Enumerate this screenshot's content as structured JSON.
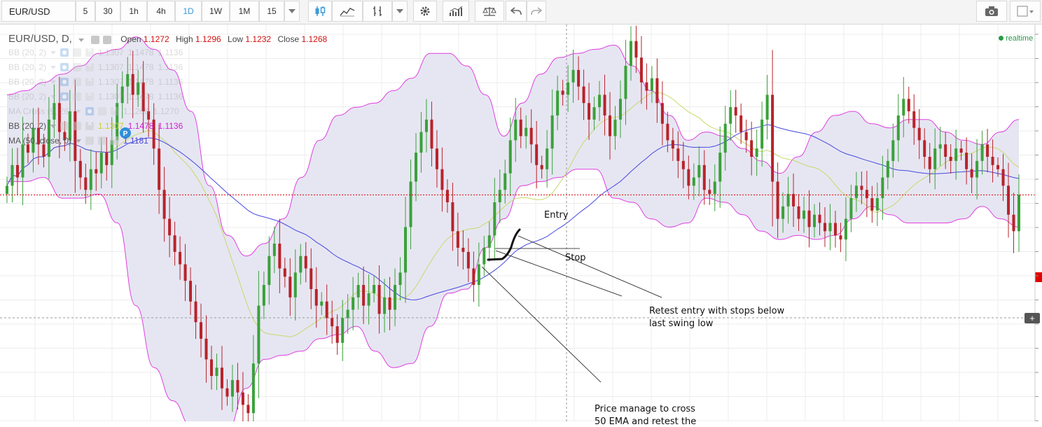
{
  "toolbar": {
    "symbol": "EUR/USD",
    "intervals": [
      "5",
      "30",
      "1h",
      "4h",
      "1D",
      "1W",
      "1M",
      "15"
    ],
    "active_interval": "1D"
  },
  "legend": {
    "title": "EUR/USD, D,",
    "open_label": "Open",
    "open": "1.1272",
    "high_label": "High",
    "high": "1.1296",
    "low_label": "Low",
    "low": "1.1232",
    "close_label": "Close",
    "close": "1.1268",
    "realtime": "realtime"
  },
  "indicators": [
    {
      "name": "BB (20, 2)",
      "values": [
        "1.1307",
        "1.1478",
        "1.1136"
      ],
      "faded": true
    },
    {
      "name": "BB (20, 2)",
      "values": [
        "1.1307",
        "1.1478",
        "1.1136"
      ],
      "faded": true
    },
    {
      "name": "BB (20, 2)",
      "values": [
        "1.1307",
        "1.1478",
        "1.1136"
      ],
      "faded": true
    },
    {
      "name": "BB (20, 2)",
      "values": [
        "1.1307",
        "1.1478",
        "1.1136"
      ],
      "faded": true
    },
    {
      "name": "MA Cross (9, 26)",
      "values": [
        "1.1268",
        "1.1270"
      ],
      "faded": true
    },
    {
      "name": "BB (20, 2)",
      "values": [
        "1.1307",
        "1.1478",
        "1.1136"
      ],
      "faded": false
    },
    {
      "name": "MA (50, close, 0)",
      "values": [
        "1.1181"
      ],
      "faded": false
    }
  ],
  "annotations": {
    "entry": "Entry",
    "stop": "Stop",
    "retest_line1": "Retest entry with stops below",
    "retest_line2": "last swing low",
    "price_line1": "Price manage to cross",
    "price_line2": "50 EMA and retest the"
  },
  "colors": {
    "up_candle": "#3aa13a",
    "down_candle": "#b8232a",
    "band": "#e040e0",
    "band_fill": "#e6e6f2",
    "ma50": "#4747e0",
    "bb_basis": "#c8d86a",
    "price_line": "#e00000",
    "accent": "#3d9bd7"
  },
  "chart_data": {
    "type": "candlestick",
    "price_range": [
      1.072,
      1.168
    ],
    "current_price": 1.1268,
    "closes": [
      1.129,
      1.134,
      1.131,
      1.139,
      1.137,
      1.143,
      1.139,
      1.136,
      1.145,
      1.149,
      1.142,
      1.14,
      1.147,
      1.135,
      1.131,
      1.128,
      1.133,
      1.132,
      1.137,
      1.134,
      1.14,
      1.149,
      1.153,
      1.156,
      1.151,
      1.154,
      1.147,
      1.145,
      1.138,
      1.128,
      1.121,
      1.117,
      1.113,
      1.11,
      1.106,
      1.101,
      1.096,
      1.092,
      1.087,
      1.083,
      1.085,
      1.08,
      1.078,
      1.082,
      1.079,
      1.076,
      1.074,
      1.086,
      1.1,
      1.105,
      1.112,
      1.115,
      1.109,
      1.107,
      1.102,
      1.108,
      1.112,
      1.109,
      1.104,
      1.1,
      1.101,
      1.097,
      1.095,
      1.091,
      1.097,
      1.099,
      1.102,
      1.105,
      1.1,
      1.103,
      1.105,
      1.098,
      1.102,
      1.099,
      1.105,
      1.108,
      1.119,
      1.13,
      1.137,
      1.142,
      1.145,
      1.138,
      1.133,
      1.128,
      1.125,
      1.118,
      1.114,
      1.113,
      1.109,
      1.105,
      1.11,
      1.114,
      1.117,
      1.125,
      1.128,
      1.132,
      1.14,
      1.145,
      1.141,
      1.143,
      1.139,
      1.134,
      1.133,
      1.138,
      1.146,
      1.152,
      1.151,
      1.154,
      1.157,
      1.153,
      1.149,
      1.145,
      1.148,
      1.151,
      1.146,
      1.141,
      1.145,
      1.15,
      1.158,
      1.164,
      1.16,
      1.154,
      1.152,
      1.155,
      1.149,
      1.144,
      1.14,
      1.138,
      1.135,
      1.133,
      1.129,
      1.131,
      1.134,
      1.128,
      1.127,
      1.13,
      1.137,
      1.144,
      1.148,
      1.146,
      1.142,
      1.14,
      1.136,
      1.138,
      1.145,
      1.151,
      1.13,
      1.121,
      1.124,
      1.127,
      1.124,
      1.121,
      1.123,
      1.119,
      1.122,
      1.12,
      1.118,
      1.12,
      1.117,
      1.116,
      1.121,
      1.126,
      1.129,
      1.128,
      1.126,
      1.123,
      1.126,
      1.131,
      1.135,
      1.14,
      1.146,
      1.15,
      1.147,
      1.143,
      1.14,
      1.136,
      1.133,
      1.138,
      1.139,
      1.136,
      1.135,
      1.138,
      1.137,
      1.133,
      1.131,
      1.135,
      1.139,
      1.136,
      1.134,
      1.133,
      1.129,
      1.122,
      1.118,
      1.1268
    ],
    "bb_upper": [
      1.151,
      1.152,
      1.154,
      1.156,
      1.158,
      1.161,
      1.162,
      1.165,
      1.162,
      1.157,
      1.147,
      1.129,
      1.117,
      1.112,
      1.115,
      1.121,
      1.131,
      1.14,
      1.146,
      1.148,
      1.149,
      1.152,
      1.155,
      1.161,
      1.161,
      1.158,
      1.151,
      1.141,
      1.149,
      1.156,
      1.16,
      1.161,
      1.162,
      1.163,
      1.158,
      1.152,
      1.146,
      1.14,
      1.142,
      1.141,
      1.138,
      1.135,
      1.132,
      1.136,
      1.142,
      1.146,
      1.147,
      1.144,
      1.143,
      1.145,
      1.145,
      1.142,
      1.14,
      1.139,
      1.142,
      1.145
    ],
    "bb_lower": [
      1.13,
      1.13,
      1.131,
      1.126,
      1.126,
      1.127,
      1.12,
      1.1,
      1.085,
      1.077,
      1.071,
      1.068,
      1.07,
      1.08,
      1.087,
      1.088,
      1.089,
      1.092,
      1.093,
      1.095,
      1.089,
      1.085,
      1.086,
      1.095,
      1.103,
      1.104,
      1.114,
      1.121,
      1.129,
      1.13,
      1.131,
      1.133,
      1.133,
      1.126,
      1.125,
      1.121,
      1.119,
      1.12,
      1.126,
      1.125,
      1.122,
      1.118,
      1.116,
      1.117,
      1.116,
      1.117,
      1.121,
      1.124,
      1.122,
      1.12,
      1.12,
      1.12,
      1.121,
      1.124,
      1.121,
      1.119
    ]
  }
}
